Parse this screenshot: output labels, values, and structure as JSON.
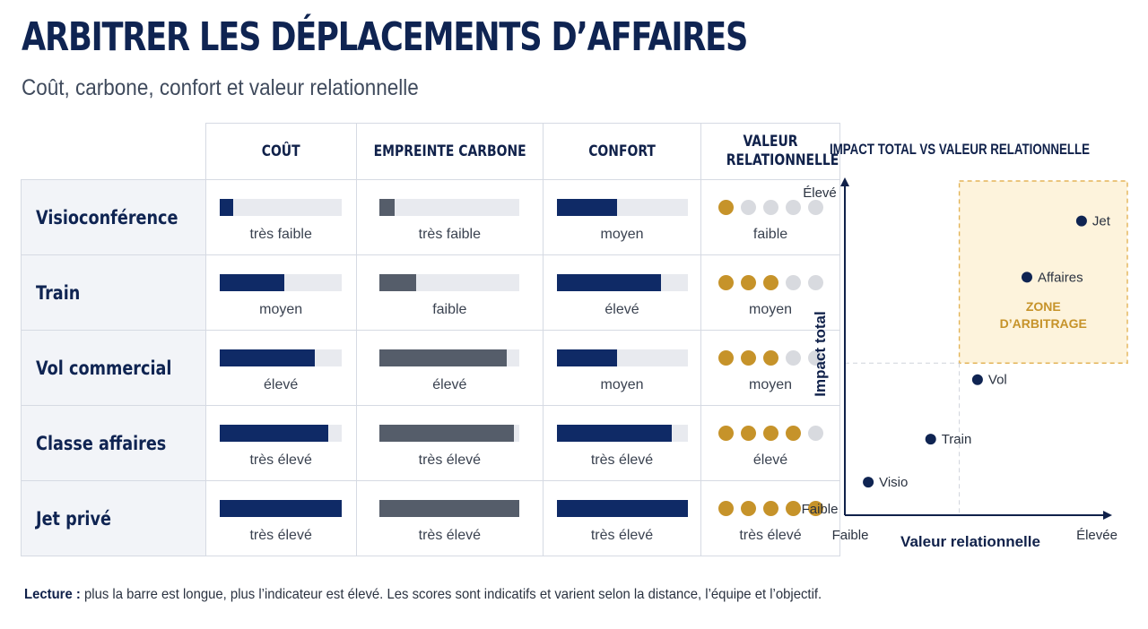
{
  "header": {
    "title": "ARBITRER LES DÉPLACEMENTS D’AFFAIRES",
    "subtitle": "Coût, carbone, confort et valeur relationnelle"
  },
  "table": {
    "columns": [
      "COÛT",
      "EMPREINTE CARBONE",
      "CONFORT",
      "VALEUR RELATIONNELLE"
    ],
    "rows": [
      {
        "label": "Visioconférence",
        "cout": {
          "level": 0.11,
          "text": "très faible"
        },
        "carbone": {
          "level": 0.11,
          "text": "très faible"
        },
        "confort": {
          "level": 0.46,
          "text": "moyen"
        },
        "valeur": {
          "score": 1,
          "text": "faible"
        }
      },
      {
        "label": "Train",
        "cout": {
          "level": 0.53,
          "text": "moyen"
        },
        "carbone": {
          "level": 0.26,
          "text": "faible"
        },
        "confort": {
          "level": 0.8,
          "text": "élevé"
        },
        "valeur": {
          "score": 3,
          "text": "moyen"
        }
      },
      {
        "label": "Vol commercial",
        "cout": {
          "level": 0.78,
          "text": "élevé"
        },
        "carbone": {
          "level": 0.91,
          "text": "élevé"
        },
        "confort": {
          "level": 0.46,
          "text": "moyen"
        },
        "valeur": {
          "score": 3,
          "text": "moyen"
        }
      },
      {
        "label": "Classe affaires",
        "cout": {
          "level": 0.89,
          "text": "très élevé"
        },
        "carbone": {
          "level": 0.96,
          "text": "très élevé"
        },
        "confort": {
          "level": 0.88,
          "text": "très élevé"
        },
        "valeur": {
          "score": 4,
          "text": "élevé"
        }
      },
      {
        "label": "Jet privé",
        "cout": {
          "level": 1.0,
          "text": "très élevé"
        },
        "carbone": {
          "level": 1.0,
          "text": "très élevé"
        },
        "confort": {
          "level": 1.0,
          "text": "très élevé"
        },
        "valeur": {
          "score": 5,
          "text": "très élevé"
        }
      }
    ],
    "max_score": 5
  },
  "chart_data": {
    "type": "scatter",
    "title": "IMPACT TOTAL VS VALEUR RELATIONNELLE",
    "xlabel": "Valeur relationnelle",
    "ylabel": "Impact total",
    "x_min_label": "Faible",
    "x_max_label": "Élevée",
    "y_min_label": "Faible",
    "y_max_label": "Élevé",
    "xlim": [
      0,
      1
    ],
    "ylim": [
      0,
      1
    ],
    "points": [
      {
        "label": "Visio",
        "x": 0.09,
        "y": 0.1
      },
      {
        "label": "Train",
        "x": 0.33,
        "y": 0.23
      },
      {
        "label": "Vol",
        "x": 0.51,
        "y": 0.41
      },
      {
        "label": "Affaires",
        "x": 0.7,
        "y": 0.72
      },
      {
        "label": "Jet",
        "x": 0.91,
        "y": 0.89
      }
    ],
    "zone": {
      "label_lines": [
        "ZONE",
        "D’ARBITRAGE"
      ],
      "x_from": 0.44,
      "y_from": 0.46
    },
    "grid": false
  },
  "colors": {
    "navy": "#0f2a66",
    "gray": "#555d6a",
    "gold": "#c6932a",
    "track": "#e8eaef"
  },
  "footnote": {
    "bold": "Lecture :",
    "text": " plus la barre est longue, plus l’indicateur est élevé. Les scores sont indicatifs et varient selon la distance, l’équipe et l’objectif."
  }
}
